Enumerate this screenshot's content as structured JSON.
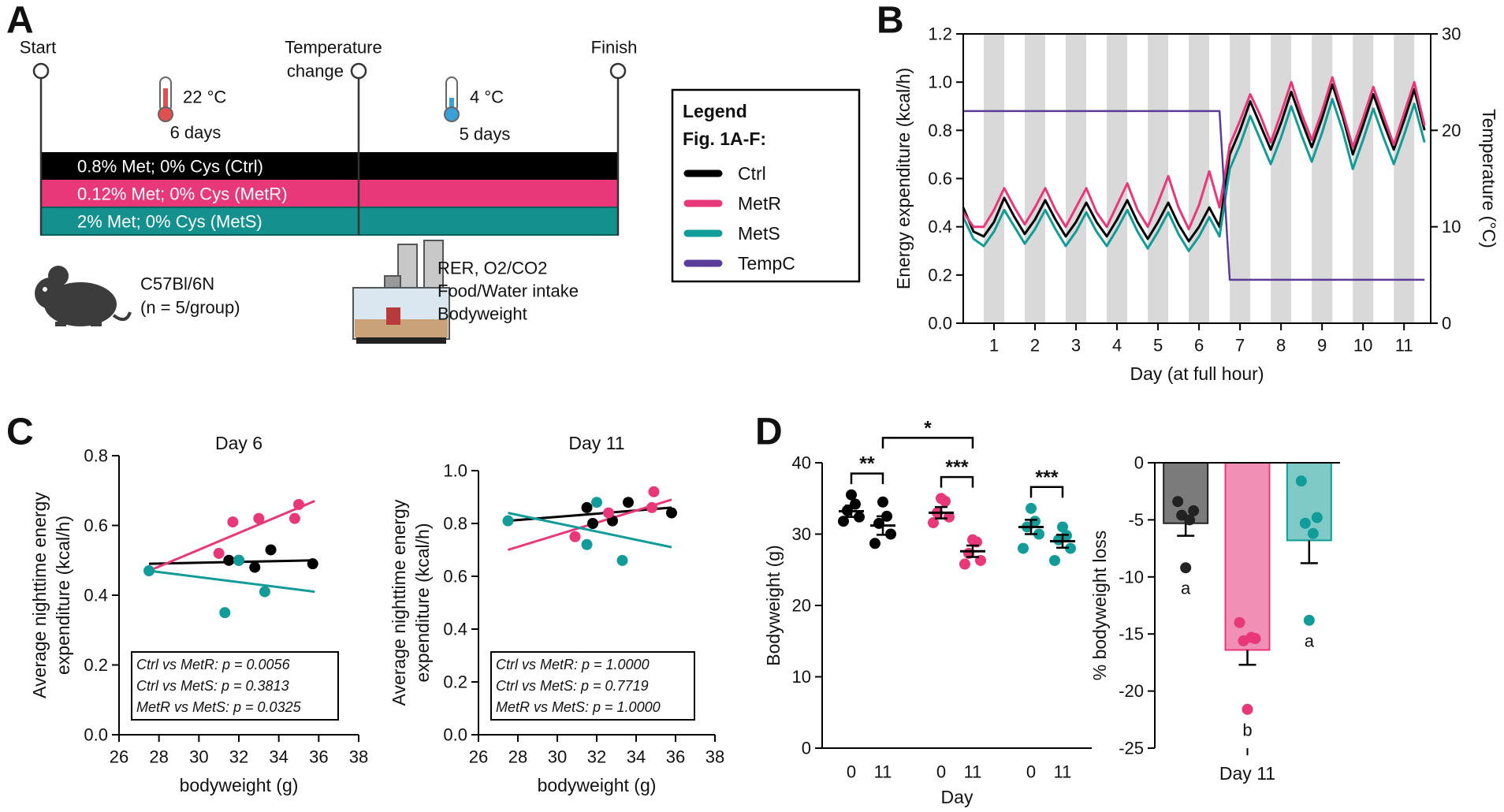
{
  "panels": [
    "A",
    "B",
    "C",
    "D"
  ],
  "diagram": {
    "start": "Start",
    "temperature_change": [
      "Temperature",
      "change"
    ],
    "finish": "Finish",
    "phase1": {
      "temperature": "22 °C",
      "duration": "6 days"
    },
    "phase2": {
      "temperature": "4 °C",
      "duration": "5 days"
    },
    "diets": [
      "0.8% Met; 0% Cys (Ctrl)",
      "0.12% Met; 0% Cys (MetR)",
      "2% Met; 0% Cys (MetS)"
    ],
    "mouse": [
      "C57Bl/6N",
      "(n = 5/group)"
    ],
    "measurements": [
      "RER, O2/CO2",
      "Food/Water intake",
      "Bodyweight"
    ]
  },
  "chart_data": [
    {
      "type": "line",
      "ylabel": "Energy expenditure (kcal/h)",
      "y2label": "Temperature (°C)",
      "xlabel": "Day (at full hour)",
      "legend_title": [
        "Legend",
        "Fig. 1A-F:"
      ],
      "xlim": [
        0.25,
        11.65
      ],
      "xticks": [
        1,
        2,
        3,
        4,
        5,
        6,
        7,
        8,
        9,
        10,
        11
      ],
      "ylim": [
        0,
        1.2
      ],
      "yticks": [
        {
          "value": 0,
          "label": "0.0"
        },
        0.2,
        0.4,
        0.6,
        0.8,
        {
          "value": 1,
          "label": "1.0"
        },
        1.2
      ],
      "y2lim": [
        0,
        30
      ],
      "y2ticks": [
        0,
        10,
        20,
        30
      ],
      "night_bands": [
        [
          0.75,
          1.25
        ],
        [
          1.75,
          2.25
        ],
        [
          2.75,
          3.25
        ],
        [
          3.75,
          4.25
        ],
        [
          4.75,
          5.25
        ],
        [
          5.75,
          6.25
        ],
        [
          6.75,
          7.25
        ],
        [
          7.75,
          8.25
        ],
        [
          8.75,
          9.25
        ],
        [
          9.75,
          10.25
        ],
        [
          10.75,
          11.25
        ]
      ],
      "x": [
        0.25,
        0.5,
        0.75,
        1,
        1.25,
        1.5,
        1.75,
        2,
        2.25,
        2.5,
        2.75,
        3,
        3.25,
        3.5,
        3.75,
        4,
        4.25,
        4.5,
        4.75,
        5,
        5.25,
        5.5,
        5.75,
        6,
        6.25,
        6.5,
        6.75,
        7,
        7.25,
        7.5,
        7.75,
        8,
        8.25,
        8.5,
        8.75,
        9,
        9.25,
        9.5,
        9.75,
        10,
        10.25,
        10.5,
        10.75,
        11,
        11.25,
        11.5
      ],
      "series": [
        {
          "name": "Ctrl",
          "color": "#000000",
          "values": [
            0.48,
            0.38,
            0.36,
            0.42,
            0.52,
            0.44,
            0.37,
            0.43,
            0.51,
            0.43,
            0.36,
            0.42,
            0.5,
            0.42,
            0.36,
            0.43,
            0.51,
            0.42,
            0.35,
            0.42,
            0.5,
            0.41,
            0.34,
            0.4,
            0.48,
            0.4,
            0.7,
            0.8,
            0.92,
            0.82,
            0.72,
            0.83,
            0.96,
            0.84,
            0.73,
            0.85,
            0.99,
            0.86,
            0.7,
            0.82,
            0.95,
            0.83,
            0.72,
            0.84,
            0.97,
            0.8
          ]
        },
        {
          "name": "MetR",
          "color": "#e8387a",
          "values": [
            0.46,
            0.4,
            0.4,
            0.47,
            0.56,
            0.48,
            0.41,
            0.48,
            0.56,
            0.47,
            0.4,
            0.48,
            0.56,
            0.46,
            0.4,
            0.49,
            0.58,
            0.47,
            0.4,
            0.5,
            0.61,
            0.48,
            0.39,
            0.49,
            0.63,
            0.48,
            0.74,
            0.84,
            0.95,
            0.86,
            0.75,
            0.87,
            1.0,
            0.87,
            0.76,
            0.88,
            1.02,
            0.88,
            0.73,
            0.85,
            0.98,
            0.86,
            0.74,
            0.87,
            1.0,
            0.82
          ]
        },
        {
          "name": "MetS",
          "color": "#129c99",
          "values": [
            0.44,
            0.35,
            0.32,
            0.38,
            0.47,
            0.4,
            0.33,
            0.39,
            0.47,
            0.39,
            0.32,
            0.38,
            0.46,
            0.38,
            0.32,
            0.39,
            0.47,
            0.38,
            0.31,
            0.38,
            0.46,
            0.37,
            0.3,
            0.36,
            0.44,
            0.36,
            0.64,
            0.74,
            0.86,
            0.76,
            0.66,
            0.77,
            0.9,
            0.78,
            0.67,
            0.79,
            0.93,
            0.8,
            0.64,
            0.76,
            0.89,
            0.77,
            0.66,
            0.78,
            0.91,
            0.75
          ]
        },
        {
          "name": "TempC",
          "color": "#5a3d99",
          "axis": "y2",
          "values": [
            22,
            22,
            22,
            22,
            22,
            22,
            22,
            22,
            22,
            22,
            22,
            22,
            22,
            22,
            22,
            22,
            22,
            22,
            22,
            22,
            22,
            22,
            22,
            22,
            22,
            22,
            4.5,
            4.5,
            4.5,
            4.5,
            4.5,
            4.5,
            4.5,
            4.5,
            4.5,
            4.5,
            4.5,
            4.5,
            4.5,
            4.5,
            4.5,
            4.5,
            4.5,
            4.5,
            4.5,
            4.5
          ]
        }
      ]
    },
    {
      "type": "scatter",
      "title": "Day 6",
      "xlabel": "bodyweight (g)",
      "ylabel": [
        "Average nighttime energy",
        "expenditure (kcal/h)"
      ],
      "xlim": [
        26,
        38
      ],
      "xticks": [
        26,
        28,
        30,
        32,
        34,
        36,
        38
      ],
      "ylim": [
        0,
        0.8
      ],
      "yticks": [
        {
          "value": 0,
          "label": "0.0"
        },
        0.2,
        0.4,
        0.6,
        0.8
      ],
      "series": [
        {
          "color": "#000000",
          "x": [
            31.5,
            32.0,
            32.8,
            33.6,
            35.7
          ],
          "values": [
            0.5,
            0.5,
            0.48,
            0.53,
            0.49
          ],
          "fit": {
            "x": [
              27.5,
              35.8
            ],
            "values": [
              0.49,
              0.5
            ]
          }
        },
        {
          "color": "#e8387a",
          "x": [
            31.0,
            31.7,
            33.0,
            34.8,
            35.0
          ],
          "values": [
            0.52,
            0.61,
            0.62,
            0.62,
            0.66
          ],
          "fit": {
            "x": [
              27.5,
              35.8
            ],
            "values": [
              0.47,
              0.67
            ]
          }
        },
        {
          "color": "#129c99",
          "x": [
            27.5,
            31.3,
            32.0,
            33.3
          ],
          "values": [
            0.47,
            0.35,
            0.5,
            0.41
          ],
          "fit": {
            "x": [
              27.5,
              35.8
            ],
            "values": [
              0.47,
              0.41
            ]
          }
        }
      ],
      "stats": [
        "Ctrl vs MetR: p = 0.0056",
        "Ctrl vs MetS: p = 0.3813",
        "MetR vs MetS: p = 0.0325"
      ]
    },
    {
      "type": "scatter",
      "title": "Day 11",
      "xlabel": "bodyweight (g)",
      "ylabel": [
        "Average nighttime energy",
        "expenditure (kcal/h)"
      ],
      "xlim": [
        26,
        38
      ],
      "xticks": [
        26,
        28,
        30,
        32,
        34,
        36,
        38
      ],
      "ylim": [
        0,
        1.0
      ],
      "yticks": [
        {
          "value": 0,
          "label": "0.0"
        },
        0.2,
        0.4,
        0.6,
        0.8,
        {
          "value": 1,
          "label": "1.0"
        }
      ],
      "series": [
        {
          "color": "#000000",
          "x": [
            31.5,
            31.8,
            32.8,
            33.6,
            35.8
          ],
          "values": [
            0.86,
            0.8,
            0.81,
            0.88,
            0.84
          ],
          "fit": {
            "x": [
              27.5,
              35.8
            ],
            "values": [
              0.81,
              0.86
            ]
          }
        },
        {
          "color": "#e8387a",
          "x": [
            30.9,
            32.6,
            34.9,
            34.8
          ],
          "values": [
            0.75,
            0.84,
            0.92,
            0.86
          ],
          "fit": {
            "x": [
              27.5,
              35.8
            ],
            "values": [
              0.7,
              0.89
            ]
          }
        },
        {
          "color": "#129c99",
          "x": [
            27.5,
            31.5,
            32.0,
            33.3
          ],
          "values": [
            0.81,
            0.72,
            0.88,
            0.66
          ],
          "fit": {
            "x": [
              27.5,
              35.8
            ],
            "values": [
              0.84,
              0.71
            ]
          }
        }
      ],
      "stats": [
        "Ctrl vs MetR: p = 1.0000",
        "Ctrl vs MetS: p = 0.7719",
        "MetR vs MetS: p = 1.0000"
      ]
    },
    {
      "type": "dot",
      "xlabel": "Day",
      "ylabel": "Bodyweight (g)",
      "categories": [
        "0",
        "11",
        "0",
        "11",
        "0",
        "11"
      ],
      "ylim": [
        0,
        40
      ],
      "yticks": [
        0,
        10,
        20,
        30,
        40
      ],
      "values": [
        33.2,
        31.2,
        33.0,
        27.6,
        31.0,
        29.0
      ],
      "errors": [
        0.8,
        1.3,
        0.8,
        0.8,
        1.0,
        0.9
      ],
      "points": [
        [
          31.8,
          32.4,
          33.3,
          34.2,
          35.5
        ],
        [
          28.7,
          30.0,
          31.5,
          32.5,
          34.5
        ],
        [
          31.6,
          32.4,
          33.0,
          34.6,
          35.0
        ],
        [
          25.8,
          26.3,
          27.3,
          28.9,
          29.2
        ],
        [
          28.0,
          30.0,
          31.0,
          31.8,
          33.6
        ],
        [
          26.3,
          28.0,
          29.2,
          29.8,
          31.0
        ]
      ],
      "colors": [
        "#000000",
        "#000000",
        "#e8387a",
        "#e8387a",
        "#129c99",
        "#129c99"
      ],
      "brackets": [
        {
          "label": "**",
          "from": 0,
          "to": 1
        },
        {
          "label": "*",
          "from": 1,
          "to": 3
        },
        {
          "label": "***",
          "from": 2,
          "to": 3
        },
        {
          "label": "***",
          "from": 4,
          "to": 5
        }
      ]
    },
    {
      "type": "bar",
      "xlabel": "Day 11",
      "ylabel": "% bodyweight loss",
      "ylim": [
        -25,
        0
      ],
      "yticks": [
        0,
        -5,
        -10,
        -15,
        -20,
        -25
      ],
      "values": [
        -5.3,
        -16.4,
        -6.8
      ],
      "errors": [
        1.1,
        1.3,
        2.0
      ],
      "points": [
        [
          -3.4,
          -4.2,
          -4.6,
          -5.0,
          -9.2
        ],
        [
          -14.0,
          -15.4,
          -15.6,
          -15.3,
          -21.6
        ],
        [
          -1.6,
          -4.8,
          -5.3,
          -6.2,
          -13.8
        ]
      ],
      "letters": [
        "a",
        "b",
        "a"
      ],
      "colors": [
        "#7b7b7b",
        "#f28fb4",
        "#7fcac7"
      ],
      "edge_colors": [
        "#222222",
        "#e8387a",
        "#129c99"
      ]
    }
  ]
}
